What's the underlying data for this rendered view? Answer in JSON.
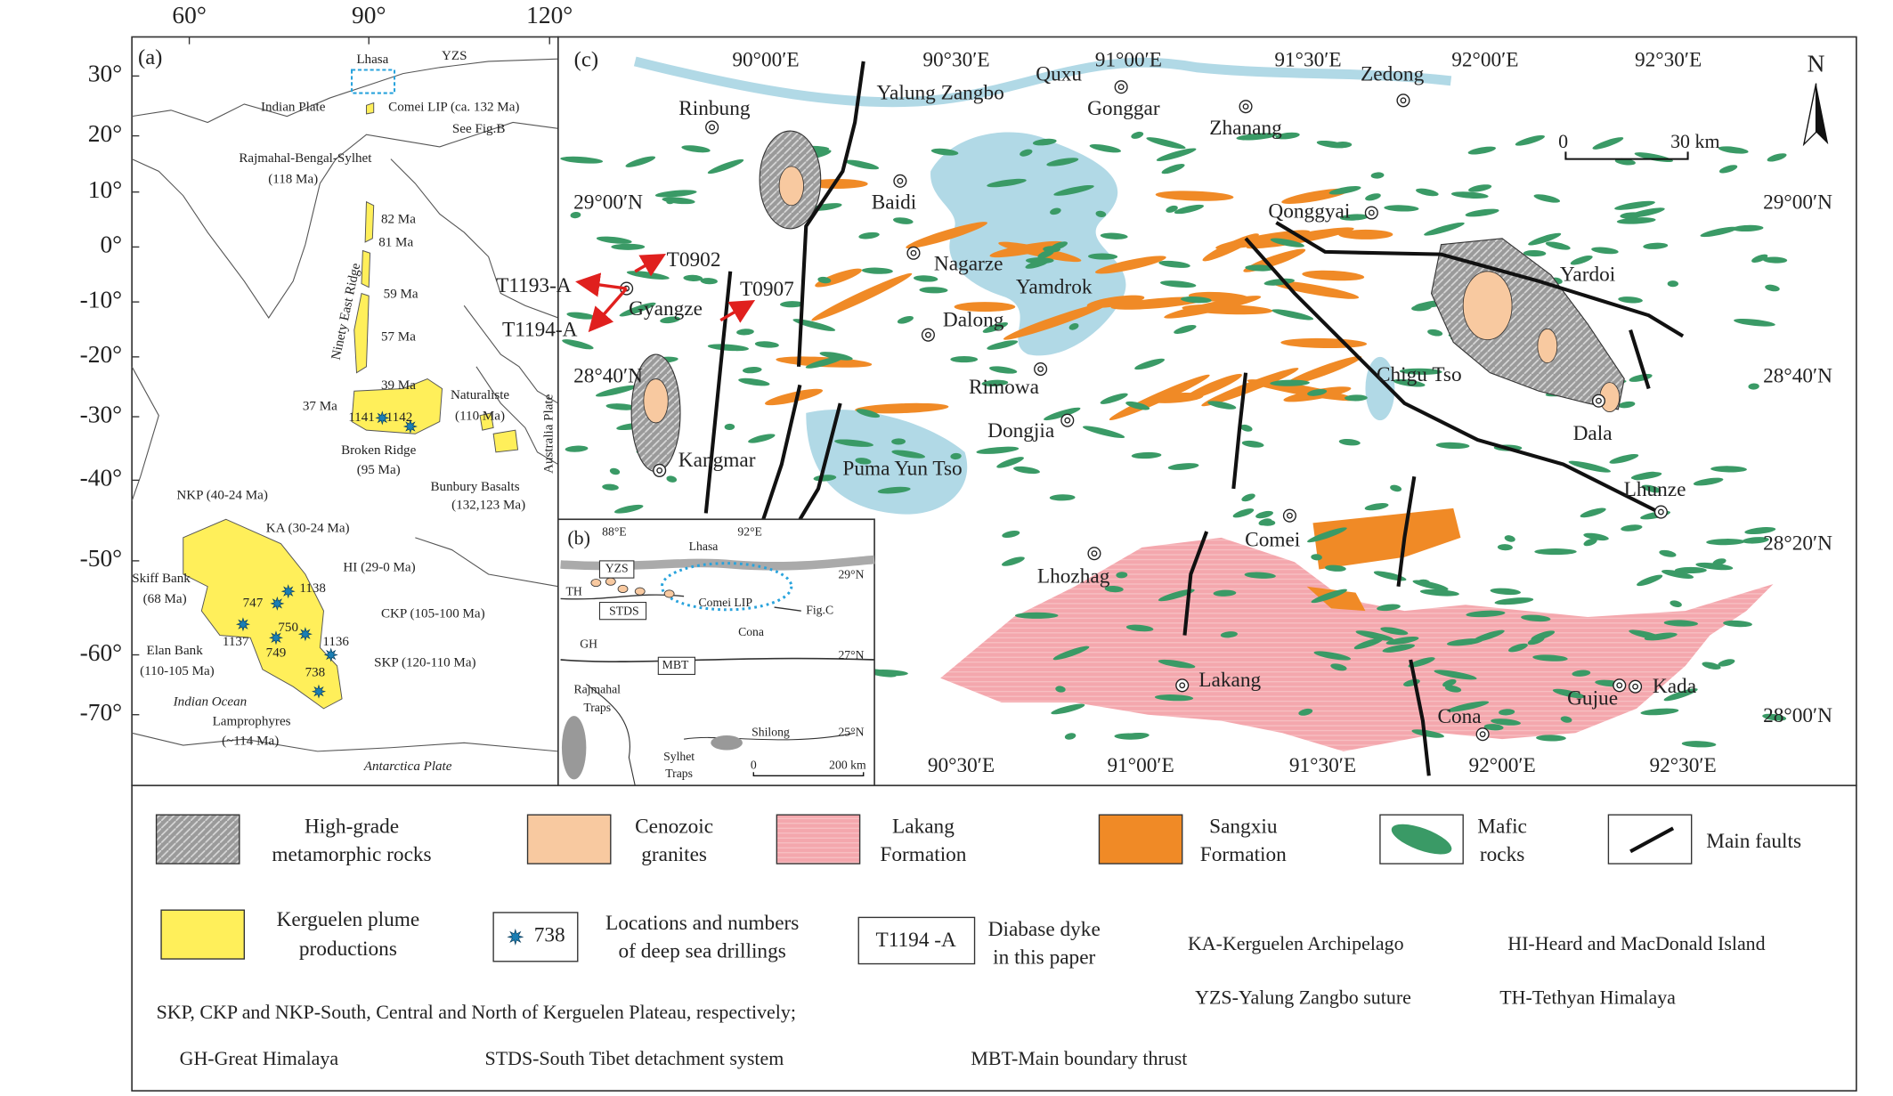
{
  "panel_a": {
    "label": "(a)",
    "lon_ticks": [
      "60°",
      "90°",
      "120°"
    ],
    "lat_ticks": [
      "30°",
      "20°",
      "10°",
      "0°",
      "-10°",
      "-20°",
      "-30°",
      "-40°",
      "-50°",
      "-60°",
      "-70°"
    ],
    "labels": [
      "Lhasa",
      "YZS",
      "Indian Plate",
      "Comei LIP (ca. 132 Ma)",
      "See Fig.B",
      "Rajmahal-Bengal-Sylhet",
      "(118 Ma)",
      "82 Ma",
      "81 Ma",
      "Ninety East Ridge",
      "59 Ma",
      "57 Ma",
      "39 Ma",
      "37 Ma",
      "1141",
      "1142",
      "Naturaliste",
      "(110 Ma)",
      "Australia Plate",
      "Broken Ridge",
      "(95 Ma)",
      "Bunbury Basalts",
      "(132,123 Ma)",
      "NKP (40-24 Ma)",
      "KA (30-24 Ma)",
      "HI (29-0 Ma)",
      "Skiff Bank",
      "(68 Ma)",
      "747",
      "1138",
      "CKP (105-100 Ma)",
      "750",
      "1136",
      "Elan Bank",
      "(110-105 Ma)",
      "1137",
      "749",
      "738",
      "SKP (120-110 Ma)",
      "Indian Ocean",
      "Lamprophyres",
      "(~114 Ma)",
      "Antarctica Plate"
    ]
  },
  "panel_b": {
    "label": "(b)",
    "labels": [
      "88°E",
      "92°E",
      "29°N",
      "27°N",
      "25°N",
      "Lhasa",
      "YZS",
      "TH",
      "STDS",
      "GH",
      "Comei LIP",
      "Fig.C",
      "Cona",
      "MBT",
      "Rajmahal",
      "Traps",
      "Sylhet",
      "Traps",
      "Shilong",
      "0",
      "200 km"
    ]
  },
  "panel_c": {
    "label": "(c)",
    "top_ticks": [
      "90°00′E",
      "90°30′E",
      "91°00′E",
      "91°30′E",
      "92°00′E",
      "92°30′E"
    ],
    "bottom_ticks": [
      "90°30′E",
      "91°00′E",
      "91°30′E",
      "92°00′E",
      "92°30′E"
    ],
    "left_ticks": [
      "29°00′N",
      "28°40′N"
    ],
    "right_ticks": [
      "29°00′N",
      "28°40′N",
      "28°20′N",
      "28°00′N"
    ],
    "places": [
      "Rinbung",
      "Yalung Zangbo",
      "Quxu",
      "Gonggar",
      "Zhanang",
      "Zedong",
      "Baidi",
      "Nagarze",
      "Yamdrok",
      "Dalong",
      "Rimowa",
      "Dongjia",
      "Qonggyai",
      "Yardoi",
      "Chigu Tso",
      "Dala",
      "Lhunze",
      "Comei",
      "Lhozhag",
      "Lakang",
      "Cona",
      "Gujue",
      "Kada",
      "Kangmar",
      "Puma Yun Tso",
      "Gyangze"
    ],
    "samples": [
      "T0902",
      "T1193-A",
      "T1194-A",
      "T0907"
    ],
    "north": "N",
    "scale": [
      "0",
      "30  km"
    ]
  },
  "legend": {
    "items": [
      {
        "lines": [
          "High-grade",
          "metamorphic rocks"
        ]
      },
      {
        "lines": [
          "Cenozoic",
          "granites"
        ]
      },
      {
        "lines": [
          "Lakang",
          "Formation"
        ]
      },
      {
        "lines": [
          "Sangxiu",
          "Formation"
        ]
      },
      {
        "lines": [
          "Mafic",
          "rocks"
        ]
      },
      {
        "lines": [
          "Main faults"
        ]
      },
      {
        "lines": [
          "Kerguelen plume",
          "productions"
        ]
      },
      {
        "marker": "738",
        "lines": [
          "Locations and numbers",
          "of deep sea drillings"
        ]
      },
      {
        "marker": "T1194 -A",
        "lines": [
          "Diabase dyke",
          "in this paper"
        ]
      }
    ],
    "notes": [
      "KA-Kerguelen Archipelago",
      "HI-Heard and MacDonald Island",
      "YZS-Yalung Zangbo suture",
      "TH-Tethyan Himalaya",
      "SKP, CKP and NKP-South, Central and North of Kerguelen Plateau, respectively;",
      "GH-Great Himalaya",
      "STDS-South Tibet detachment system",
      "MBT-Main boundary thrust"
    ]
  }
}
